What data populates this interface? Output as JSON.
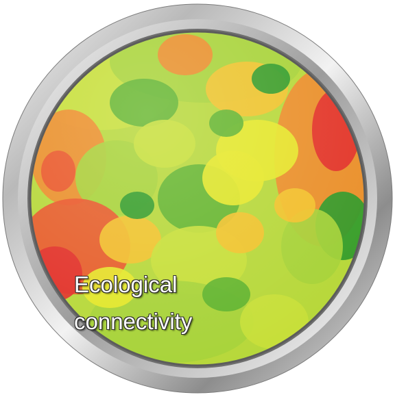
{
  "badge": {
    "label_line_1": "Ecological",
    "label_line_2": "connectivity"
  },
  "colors": {
    "dark_green": "#2f9a2a",
    "green": "#5fb32f",
    "yellow_green": "#a6d23a",
    "lime": "#c8e03a",
    "yellow": "#e6e82a",
    "gold": "#f2c22c",
    "orange": "#ee8a2a",
    "red_orange": "#e9552a",
    "red": "#e2302a",
    "rim_light": "#f3f3f3",
    "rim_dark": "#8a8a8a"
  }
}
